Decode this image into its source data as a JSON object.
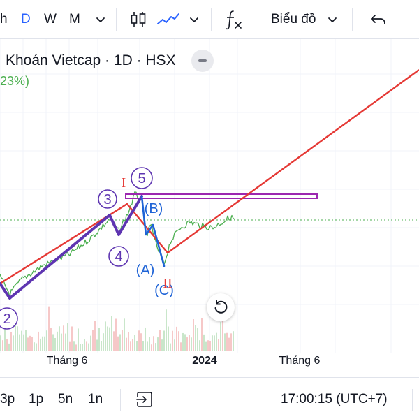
{
  "toolbar": {
    "intervals": [
      {
        "label": "h",
        "active": false
      },
      {
        "label": "D",
        "active": true
      },
      {
        "label": "W",
        "active": false
      },
      {
        "label": "M",
        "active": false
      }
    ],
    "chart_type_label": "Biểu đồ"
  },
  "header": {
    "symbol_title": "Khoán Vietcap · 1D · HSX",
    "change_pct": "23%)"
  },
  "annotations": {
    "wave_3": "3",
    "wave_4": "4",
    "wave_5": "5",
    "wave_2": "2",
    "wave_A": "(A)",
    "wave_B": "(B)",
    "wave_C": "(C)",
    "mark_I": "I",
    "mark_II": "II"
  },
  "time_axis": [
    "Tháng 6",
    "2024",
    "Tháng 6"
  ],
  "bottom": {
    "ranges": [
      "3p",
      "1p",
      "5n",
      "1n"
    ],
    "clock": "17:00:15 (UTC+7)"
  },
  "colors": {
    "accent": "#2962ff",
    "price_line": "#4caf50",
    "channel_red": "#e53935",
    "wave_purple": "#5e35b1",
    "wave_blue": "#1e63d6",
    "resistance_box": "#9c27b0"
  },
  "icons": [
    "chevron-down-icon",
    "candlestick-icon",
    "line-chart-icon",
    "formula-icon",
    "undo-icon",
    "replay-icon",
    "reset-icon",
    "collapse-icon"
  ]
}
